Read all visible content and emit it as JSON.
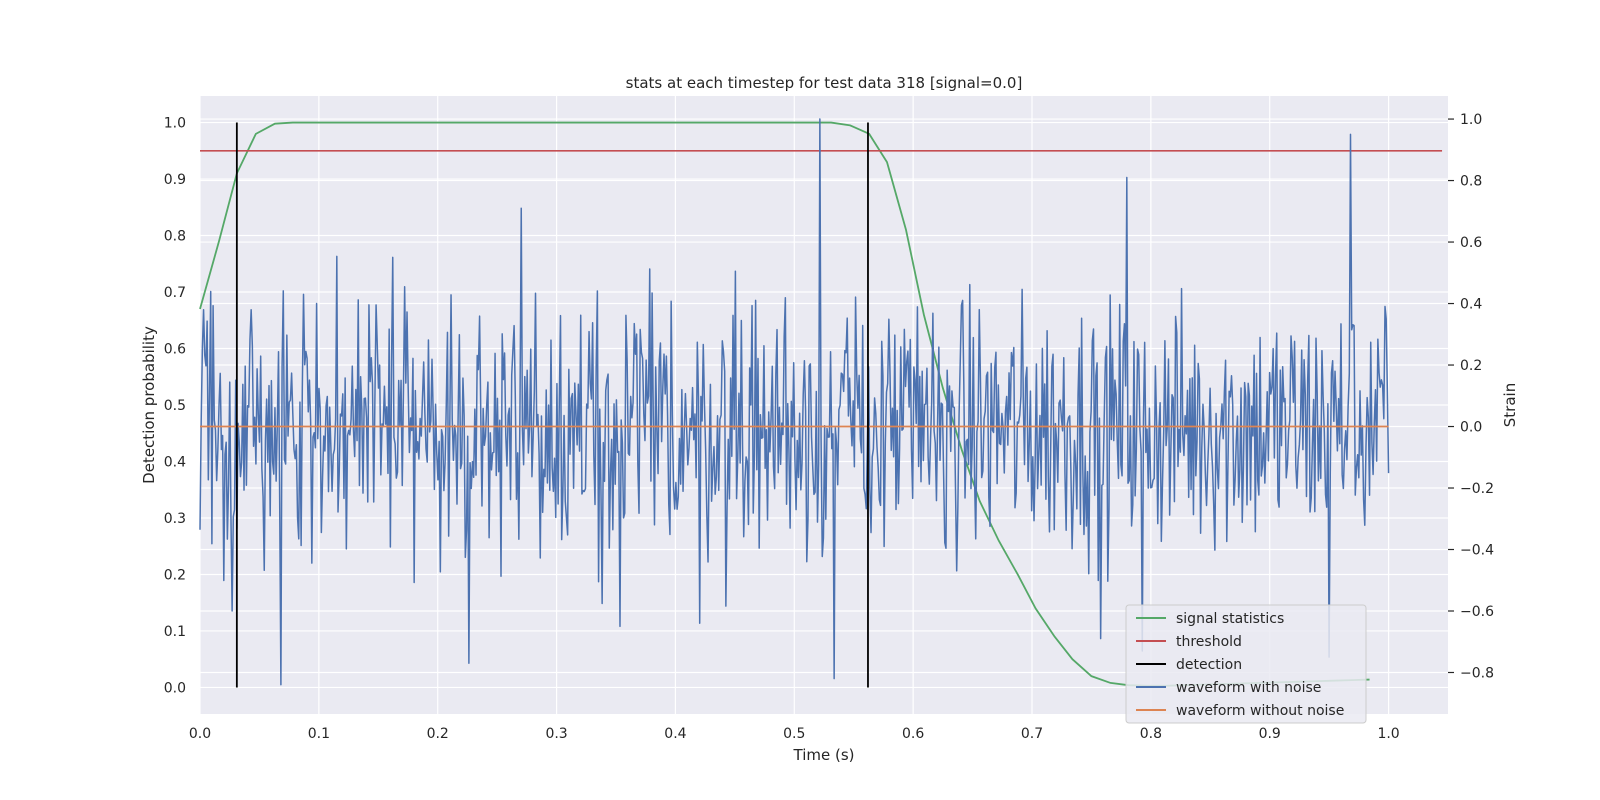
{
  "chart_data": {
    "type": "line",
    "title": "stats at each timestep for test data 318 [signal=0.0]",
    "xlabel": "Time (s)",
    "ylabel": "Detection probability",
    "y2label": "Strain",
    "xlim": [
      0.0,
      1.05
    ],
    "ylim": [
      -0.047,
      1.047
    ],
    "y2lim": [
      -0.935,
      1.075
    ],
    "x_ticks": [
      "0.0",
      "0.1",
      "0.2",
      "0.3",
      "0.4",
      "0.5",
      "0.6",
      "0.7",
      "0.8",
      "0.9",
      "1.0"
    ],
    "y_ticks": [
      "0.0",
      "0.1",
      "0.2",
      "0.3",
      "0.4",
      "0.5",
      "0.6",
      "0.7",
      "0.8",
      "0.9",
      "1.0"
    ],
    "y2_ticks": [
      "1.0",
      "0.8",
      "0.6",
      "0.4",
      "0.2",
      "0.0",
      "−0.2",
      "−0.4",
      "−0.6",
      "−0.8"
    ],
    "grid": true,
    "legend_position": "lower-right",
    "legend": [
      "signal statistics",
      "threshold",
      "detection",
      "waveform with noise",
      "waveform without noise"
    ],
    "colors": {
      "signal_statistics": "#55a868",
      "threshold": "#c44e52",
      "detection": "#000000",
      "waveform_with_noise": "#4c72b0",
      "waveform_without_noise": "#dd8452",
      "plot_background": "#eaeaf2",
      "grid": "#ffffff"
    },
    "signal_statistics": {
      "x": [
        0.0,
        0.016,
        0.031,
        0.047,
        0.063,
        0.078,
        0.094,
        0.2,
        0.3,
        0.4,
        0.5,
        0.531,
        0.547,
        0.563,
        0.578,
        0.594,
        0.609,
        0.625,
        0.641,
        0.656,
        0.672,
        0.688,
        0.703,
        0.719,
        0.734,
        0.75,
        0.766,
        0.781,
        0.797,
        0.813,
        0.828,
        0.844,
        0.859,
        0.875,
        0.891,
        0.906,
        0.922,
        0.938,
        0.953,
        0.969,
        0.984
      ],
      "values": [
        0.67,
        0.79,
        0.91,
        0.98,
        0.998,
        1.0,
        1.0,
        1.0,
        1.0,
        1.0,
        1.0,
        1.0,
        0.995,
        0.98,
        0.93,
        0.81,
        0.66,
        0.53,
        0.42,
        0.33,
        0.26,
        0.2,
        0.14,
        0.09,
        0.05,
        0.02,
        0.008,
        0.004,
        0.003,
        0.003,
        0.004,
        0.005,
        0.006,
        0.007,
        0.008,
        0.009,
        0.01,
        0.011,
        0.012,
        0.013,
        0.014
      ]
    },
    "threshold": 0.95,
    "threshold_x_range": [
      0.0,
      1.045
    ],
    "detections": [
      0.031,
      0.562
    ],
    "waveform_without_noise": {
      "x": [
        0.0,
        1.0
      ],
      "values": [
        0.0,
        0.0
      ]
    },
    "waveform_with_noise": {
      "x_range": [
        0.0,
        1.0
      ],
      "num_points": 1000,
      "spikes": [
        {
          "x": 0.003,
          "value": 0.38
        },
        {
          "x": 0.027,
          "value": -0.6
        },
        {
          "x": 0.068,
          "value": -0.84
        },
        {
          "x": 0.098,
          "value": 0.4
        },
        {
          "x": 0.162,
          "value": 0.55
        },
        {
          "x": 0.226,
          "value": -0.77
        },
        {
          "x": 0.27,
          "value": 0.71
        },
        {
          "x": 0.353,
          "value": -0.65
        },
        {
          "x": 0.42,
          "value": -0.64
        },
        {
          "x": 0.522,
          "value": 1.0
        },
        {
          "x": 0.534,
          "value": -0.82
        },
        {
          "x": 0.758,
          "value": -0.69
        },
        {
          "x": 0.78,
          "value": 0.81
        },
        {
          "x": 0.793,
          "value": -0.73
        },
        {
          "x": 0.95,
          "value": -0.75
        },
        {
          "x": 0.968,
          "value": 0.95
        },
        {
          "x": 0.998,
          "value": 0.35
        }
      ]
    }
  }
}
